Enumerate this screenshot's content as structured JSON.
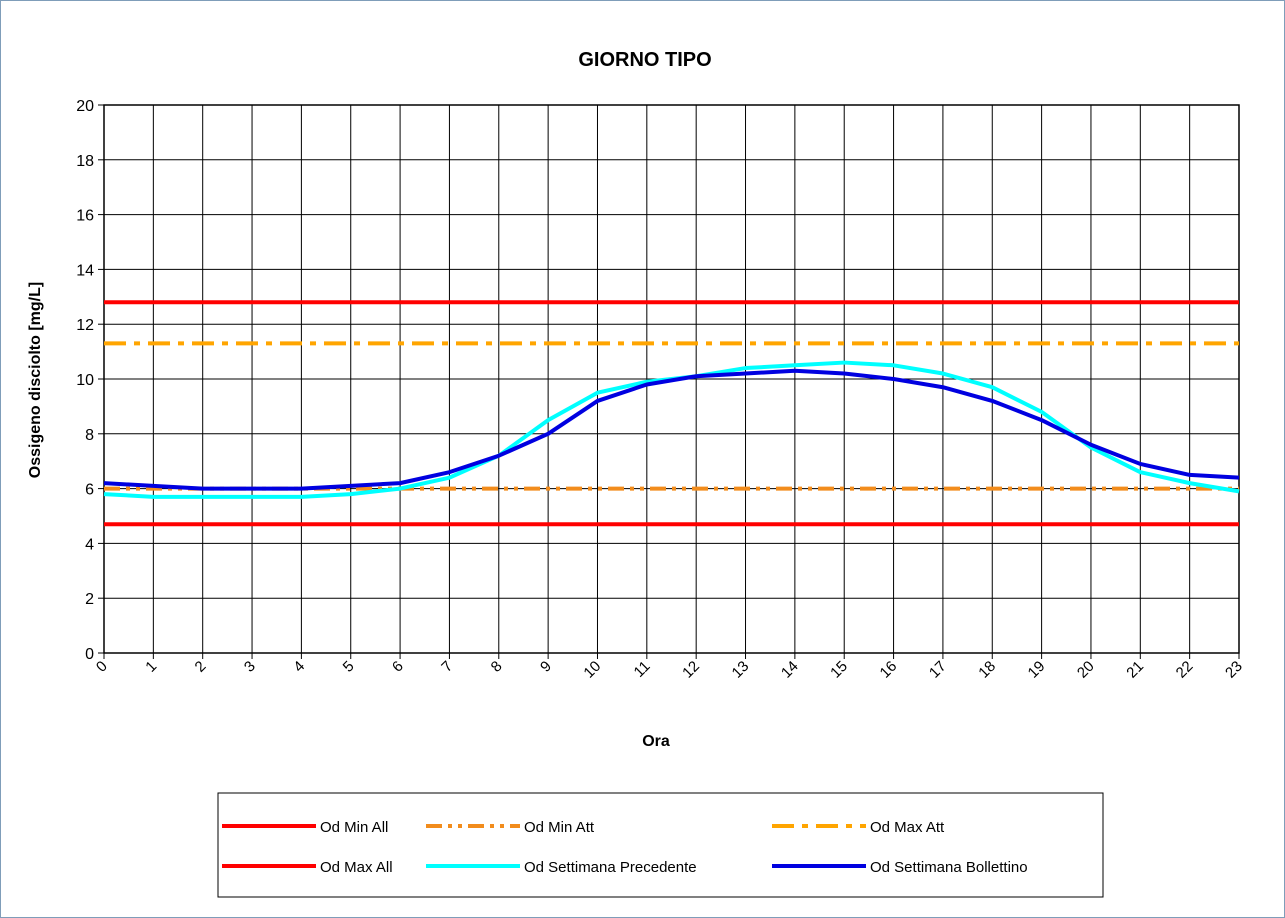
{
  "chart_data": {
    "type": "line",
    "title": "GIORNO TIPO",
    "xlabel": "Ora",
    "ylabel": "Ossigeno disciolto [mg/L]",
    "ylim": [
      0,
      20
    ],
    "yticks": [
      "0",
      "2",
      "4",
      "6",
      "8",
      "10",
      "12",
      "14",
      "16",
      "18",
      "20"
    ],
    "categories": [
      "0",
      "1",
      "2",
      "3",
      "4",
      "5",
      "6",
      "7",
      "8",
      "9",
      "10",
      "11",
      "12",
      "13",
      "14",
      "15",
      "16",
      "17",
      "18",
      "19",
      "20",
      "21",
      "22",
      "23"
    ],
    "grid": true,
    "legend_position": "bottom",
    "series": [
      {
        "name": "Od Min All",
        "color": "#ff0000",
        "dash": "solid",
        "width": 4,
        "values": [
          4.7,
          4.7,
          4.7,
          4.7,
          4.7,
          4.7,
          4.7,
          4.7,
          4.7,
          4.7,
          4.7,
          4.7,
          4.7,
          4.7,
          4.7,
          4.7,
          4.7,
          4.7,
          4.7,
          4.7,
          4.7,
          4.7,
          4.7,
          4.7
        ]
      },
      {
        "name": "Od Min Att",
        "color": "#f28c1c",
        "dash": "dashdotdot",
        "width": 4,
        "values": [
          6.0,
          6.0,
          6.0,
          6.0,
          6.0,
          6.0,
          6.0,
          6.0,
          6.0,
          6.0,
          6.0,
          6.0,
          6.0,
          6.0,
          6.0,
          6.0,
          6.0,
          6.0,
          6.0,
          6.0,
          6.0,
          6.0,
          6.0,
          6.0
        ]
      },
      {
        "name": "Od Max Att",
        "color": "#ffa500",
        "dash": "dashdot",
        "width": 4,
        "values": [
          11.3,
          11.3,
          11.3,
          11.3,
          11.3,
          11.3,
          11.3,
          11.3,
          11.3,
          11.3,
          11.3,
          11.3,
          11.3,
          11.3,
          11.3,
          11.3,
          11.3,
          11.3,
          11.3,
          11.3,
          11.3,
          11.3,
          11.3,
          11.3
        ]
      },
      {
        "name": "Od Max All",
        "color": "#ff0000",
        "dash": "solid",
        "width": 4,
        "values": [
          12.8,
          12.8,
          12.8,
          12.8,
          12.8,
          12.8,
          12.8,
          12.8,
          12.8,
          12.8,
          12.8,
          12.8,
          12.8,
          12.8,
          12.8,
          12.8,
          12.8,
          12.8,
          12.8,
          12.8,
          12.8,
          12.8,
          12.8,
          12.8
        ]
      },
      {
        "name": "Od Settimana Precedente",
        "color": "#00ffff",
        "dash": "solid",
        "width": 4,
        "values": [
          5.8,
          5.7,
          5.7,
          5.7,
          5.7,
          5.8,
          6.0,
          6.4,
          7.2,
          8.5,
          9.5,
          9.9,
          10.1,
          10.4,
          10.5,
          10.6,
          10.5,
          10.2,
          9.7,
          8.8,
          7.5,
          6.6,
          6.2,
          5.9
        ]
      },
      {
        "name": "Od Settimana Bollettino",
        "color": "#0000e0",
        "dash": "solid",
        "width": 4,
        "values": [
          6.2,
          6.1,
          6.0,
          6.0,
          6.0,
          6.1,
          6.2,
          6.6,
          7.2,
          8.0,
          9.2,
          9.8,
          10.1,
          10.2,
          10.3,
          10.2,
          10.0,
          9.7,
          9.2,
          8.5,
          7.6,
          6.9,
          6.5,
          6.4
        ]
      }
    ]
  }
}
